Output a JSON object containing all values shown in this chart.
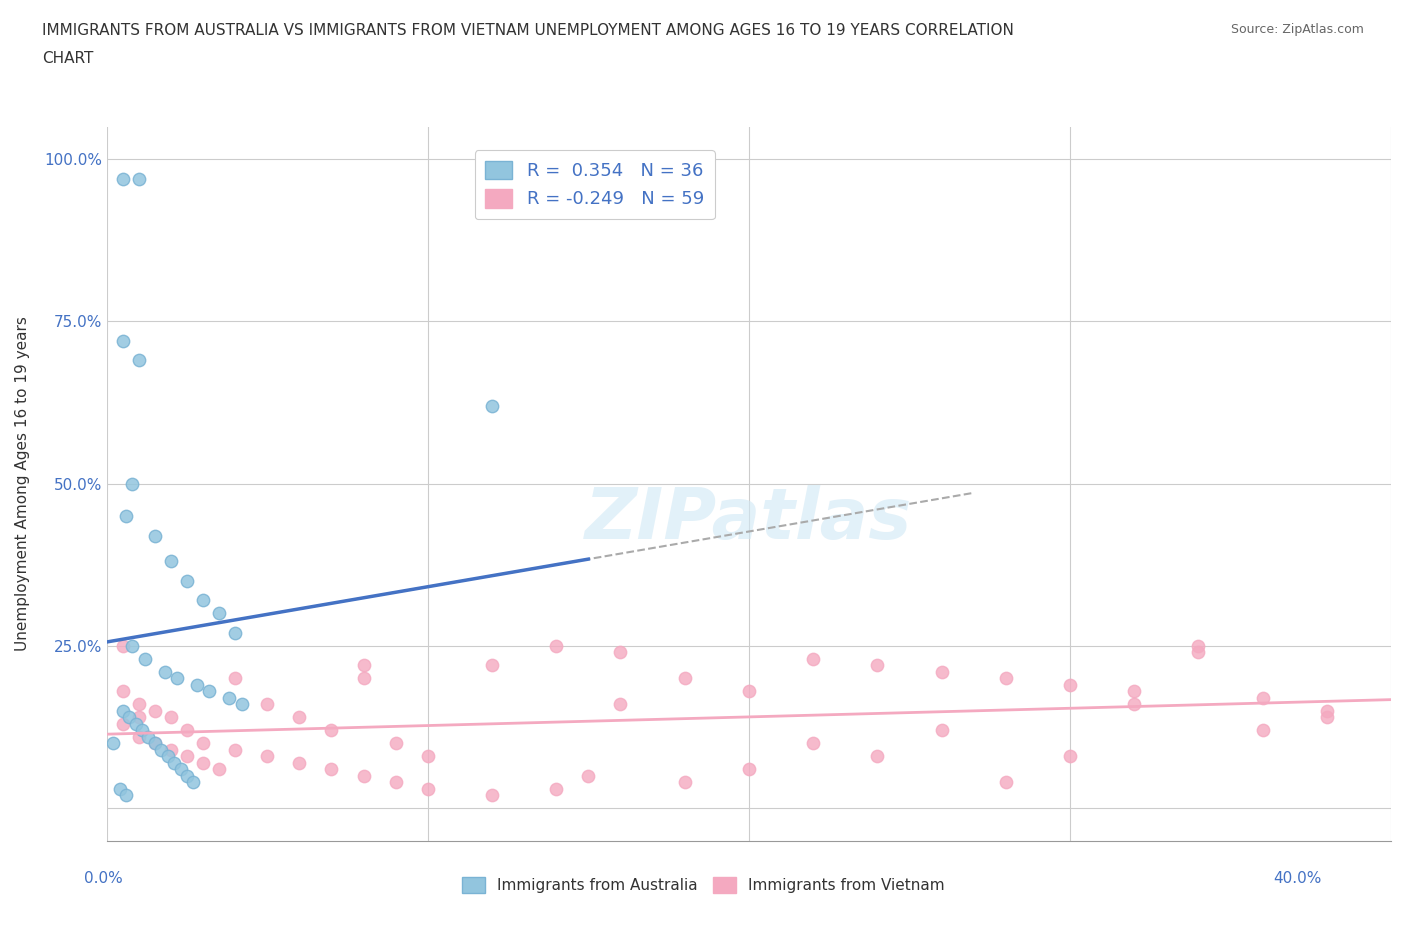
{
  "title_line1": "IMMIGRANTS FROM AUSTRALIA VS IMMIGRANTS FROM VIETNAM UNEMPLOYMENT AMONG AGES 16 TO 19 YEARS CORRELATION",
  "title_line2": "CHART",
  "source": "Source: ZipAtlas.com",
  "ylabel": "Unemployment Among Ages 16 to 19 years",
  "xlim": [
    0.0,
    0.4
  ],
  "ylim": [
    -0.05,
    1.05
  ],
  "yticks": [
    0.0,
    0.25,
    0.5,
    0.75,
    1.0
  ],
  "ytick_labels": [
    "",
    "25.0%",
    "50.0%",
    "75.0%",
    "100.0%"
  ],
  "australia_color": "#92c5de",
  "australia_edge_color": "#7ab3d4",
  "vietnam_color": "#f4a9c0",
  "vietnam_edge_color": "#f4a9c0",
  "regression_line_color_australia": "#4472c4",
  "regression_line_color_vietnam": "#f4a9c0",
  "dashed_line_color": "#aaaaaa",
  "R_australia": 0.354,
  "N_australia": 36,
  "R_vietnam": -0.249,
  "N_vietnam": 59,
  "watermark": "ZIPatlas",
  "watermark_color": "#d0e8f5",
  "tick_label_color": "#4472c4",
  "axis_label_color": "#333333",
  "source_color": "#666666",
  "grid_color": "#cccccc",
  "background_color": "#ffffff",
  "australia_scatter_x": [
    0.005,
    0.01,
    0.12,
    0.01,
    0.005,
    0.008,
    0.006,
    0.015,
    0.02,
    0.025,
    0.03,
    0.035,
    0.04,
    0.008,
    0.012,
    0.018,
    0.022,
    0.028,
    0.032,
    0.038,
    0.042,
    0.005,
    0.007,
    0.009,
    0.011,
    0.013,
    0.015,
    0.017,
    0.019,
    0.021,
    0.023,
    0.025,
    0.027,
    0.004,
    0.006,
    0.002
  ],
  "australia_scatter_y": [
    0.97,
    0.97,
    0.62,
    0.69,
    0.72,
    0.5,
    0.45,
    0.42,
    0.38,
    0.35,
    0.32,
    0.3,
    0.27,
    0.25,
    0.23,
    0.21,
    0.2,
    0.19,
    0.18,
    0.17,
    0.16,
    0.15,
    0.14,
    0.13,
    0.12,
    0.11,
    0.1,
    0.09,
    0.08,
    0.07,
    0.06,
    0.05,
    0.04,
    0.03,
    0.02,
    0.1
  ],
  "vietnam_scatter_x": [
    0.005,
    0.01,
    0.015,
    0.02,
    0.025,
    0.03,
    0.04,
    0.05,
    0.06,
    0.07,
    0.08,
    0.09,
    0.1,
    0.12,
    0.14,
    0.16,
    0.18,
    0.2,
    0.22,
    0.24,
    0.26,
    0.28,
    0.3,
    0.32,
    0.34,
    0.36,
    0.38,
    0.005,
    0.01,
    0.015,
    0.02,
    0.025,
    0.03,
    0.035,
    0.04,
    0.05,
    0.06,
    0.07,
    0.08,
    0.09,
    0.1,
    0.12,
    0.14,
    0.16,
    0.18,
    0.2,
    0.22,
    0.24,
    0.26,
    0.28,
    0.3,
    0.32,
    0.34,
    0.36,
    0.38,
    0.005,
    0.01,
    0.15,
    0.08
  ],
  "vietnam_scatter_y": [
    0.18,
    0.16,
    0.15,
    0.14,
    0.12,
    0.1,
    0.09,
    0.08,
    0.07,
    0.06,
    0.05,
    0.04,
    0.03,
    0.22,
    0.25,
    0.24,
    0.2,
    0.18,
    0.23,
    0.22,
    0.21,
    0.2,
    0.19,
    0.18,
    0.25,
    0.17,
    0.15,
    0.13,
    0.11,
    0.1,
    0.09,
    0.08,
    0.07,
    0.06,
    0.2,
    0.16,
    0.14,
    0.12,
    0.22,
    0.1,
    0.08,
    0.02,
    0.03,
    0.16,
    0.04,
    0.06,
    0.1,
    0.08,
    0.12,
    0.04,
    0.08,
    0.16,
    0.24,
    0.12,
    0.14,
    0.25,
    0.14,
    0.05,
    0.2
  ]
}
